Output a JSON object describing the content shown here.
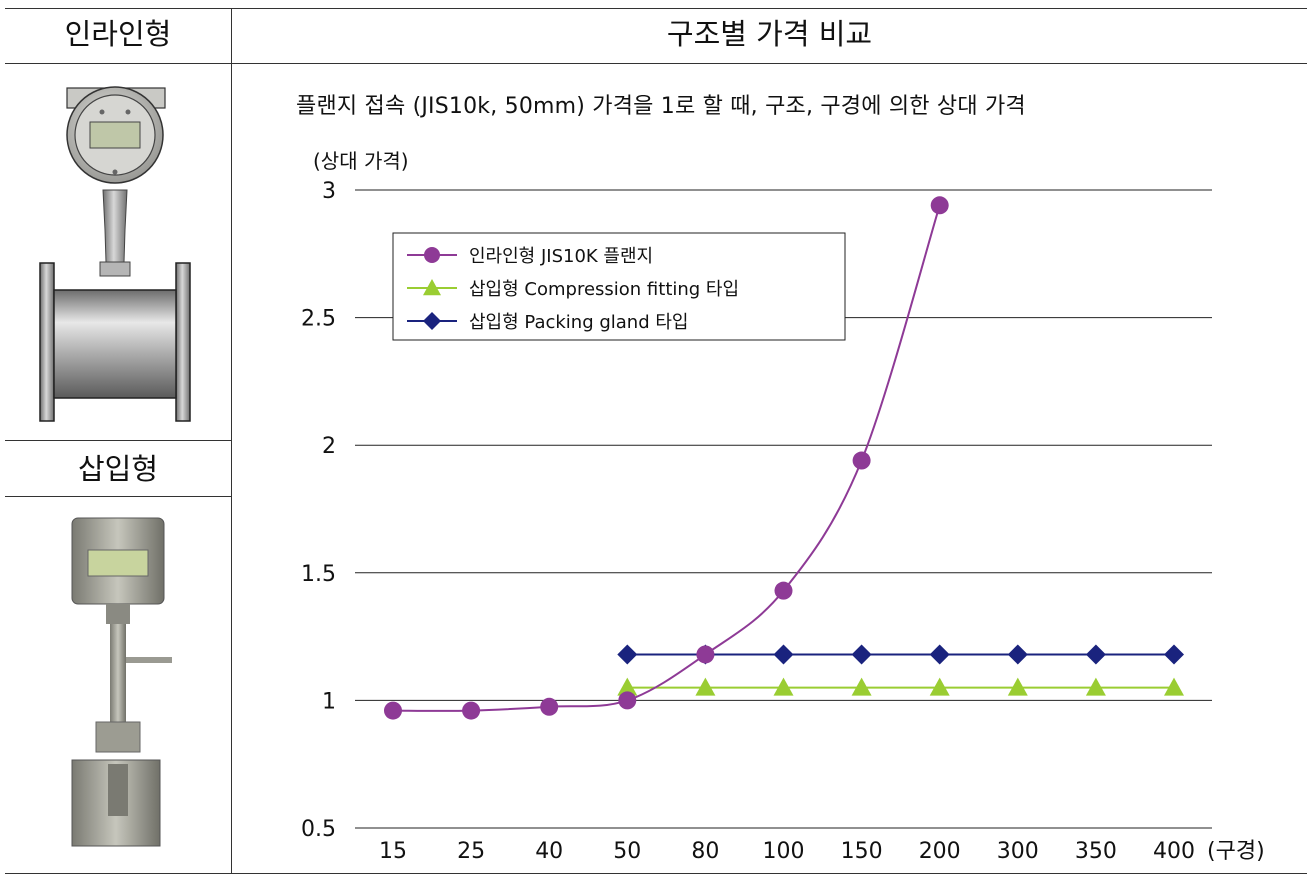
{
  "table": {
    "inline_header": "인라인형",
    "chart_header": "구조별 가격 비교",
    "insertion_header": "삽입형"
  },
  "chart_data": {
    "type": "line",
    "title": "플랜지 접속 (JIS10k, 50mm) 가격을 1로 할 때, 구조, 구경에 의한 상대 가격",
    "ylabel": "(상대 가격)",
    "xlabel": "(구경)",
    "categories": [
      "15",
      "25",
      "40",
      "50",
      "80",
      "100",
      "150",
      "200",
      "300",
      "350",
      "400"
    ],
    "ylim": [
      0.5,
      3
    ],
    "yticks": [
      "0.5",
      "1",
      "1.5",
      "2",
      "2.5",
      "3"
    ],
    "grid": true,
    "legend_position": "top-left",
    "series": [
      {
        "name": "인라인형 JIS10K 플랜지",
        "marker": "circle",
        "color": "#8e3a96",
        "values": [
          0.96,
          0.96,
          0.975,
          1.0,
          1.18,
          1.43,
          1.94,
          2.94,
          null,
          null,
          null
        ]
      },
      {
        "name": "삽입형 Compression fitting 타입",
        "marker": "triangle",
        "color": "#9acd32",
        "values": [
          null,
          null,
          null,
          1.05,
          1.05,
          1.05,
          1.05,
          1.05,
          1.05,
          1.05,
          1.05
        ]
      },
      {
        "name": "삽입형 Packing gland 타입",
        "marker": "diamond",
        "color": "#1a237e",
        "values": [
          null,
          null,
          null,
          1.18,
          1.18,
          1.18,
          1.18,
          1.18,
          1.18,
          1.18,
          1.18
        ]
      }
    ]
  }
}
